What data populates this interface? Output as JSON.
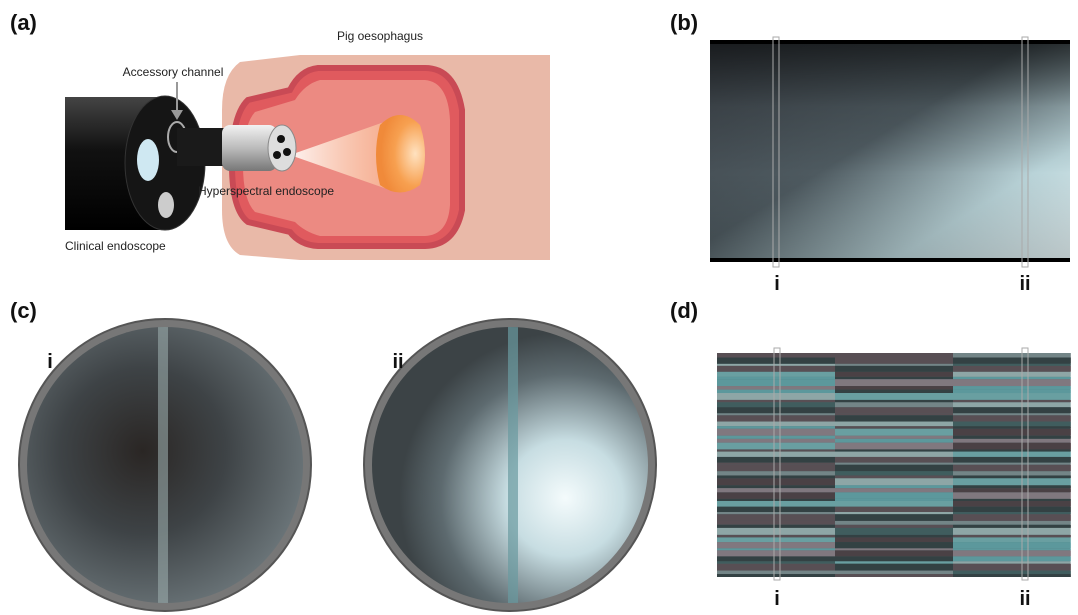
{
  "panels": {
    "a": {
      "label": "(a)",
      "annotations": {
        "tissue": "Pig oesophagus",
        "channel": "Accessory channel",
        "probe": "Hyperspectral endoscope",
        "scope": "Clinical endoscope"
      }
    },
    "b": {
      "label": "(b)",
      "markers": [
        "i",
        "ii"
      ]
    },
    "c": {
      "label": "(c)",
      "markers": [
        "i",
        "ii"
      ]
    },
    "d": {
      "label": "(d)",
      "markers": [
        "i",
        "ii"
      ]
    }
  }
}
